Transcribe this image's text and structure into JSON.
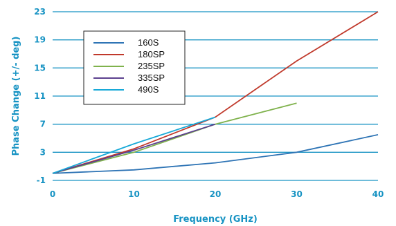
{
  "chart_data": {
    "type": "line",
    "xlabel": "Frequency (GHz)",
    "ylabel": "Phase Change (+/- deg)",
    "xlim": [
      0,
      40
    ],
    "ylim": [
      -1,
      23
    ],
    "x_ticks": [
      0,
      10,
      20,
      30,
      40
    ],
    "y_ticks": [
      -1,
      3,
      7,
      11,
      15,
      19,
      23
    ],
    "grid": "horizontal",
    "legend_position": "top-left",
    "series": [
      {
        "name": "160S",
        "color": "#2e74b5",
        "x": [
          0,
          10,
          20,
          30,
          40
        ],
        "y": [
          0,
          0.5,
          1.5,
          3,
          5.5
        ]
      },
      {
        "name": "180SP",
        "color": "#c0392b",
        "x": [
          0,
          10,
          20,
          30,
          40
        ],
        "y": [
          0,
          3.5,
          8,
          16,
          23
        ]
      },
      {
        "name": "235SP",
        "color": "#7fb24c",
        "x": [
          0,
          10,
          20,
          30
        ],
        "y": [
          0,
          3,
          7,
          10
        ]
      },
      {
        "name": "335SP",
        "color": "#5b3f8e",
        "x": [
          0,
          10,
          20
        ],
        "y": [
          0,
          3.3,
          7
        ]
      },
      {
        "name": "490S",
        "color": "#17a9d8",
        "x": [
          0,
          10,
          20
        ],
        "y": [
          0,
          4.2,
          8
        ]
      }
    ]
  }
}
